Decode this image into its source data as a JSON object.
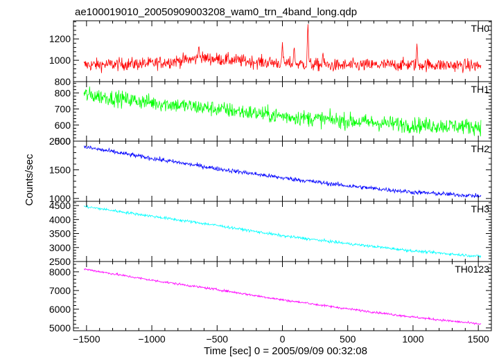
{
  "chart_data": [
    {
      "type": "line",
      "title": "ae100019010_20050909003208_wam0_trn_4band_long.qdp",
      "series": [
        {
          "name": "TH0",
          "color": "#ff0000",
          "trend": [
            [
              -1520,
              955
            ],
            [
              -1000,
              970
            ],
            [
              -600,
              1020
            ],
            [
              -200,
              985
            ],
            [
              400,
              950
            ],
            [
              1000,
              960
            ],
            [
              1520,
              948
            ]
          ],
          "noise": 55,
          "spikes": [
            [
              -640,
              1150
            ],
            [
              0,
              1170
            ],
            [
              90,
              1140
            ],
            [
              195,
              1380
            ],
            [
              310,
              1080
            ],
            [
              1030,
              1160
            ]
          ]
        }
      ],
      "ylim": [
        800,
        1370
      ],
      "yticks": [
        800,
        1000,
        1200
      ],
      "grid": false
    },
    {
      "type": "line",
      "series": [
        {
          "name": "TH1",
          "color": "#00ff00",
          "trend": [
            [
              -1520,
              790
            ],
            [
              -1000,
              740
            ],
            [
              -500,
              700
            ],
            [
              0,
              655
            ],
            [
              500,
              625
            ],
            [
              1000,
              600
            ],
            [
              1520,
              590
            ]
          ],
          "noise": 45
        }
      ],
      "ylim": [
        500,
        870
      ],
      "yticks": [
        500,
        600,
        700,
        800
      ],
      "grid": false
    },
    {
      "type": "line",
      "series": [
        {
          "name": "TH2",
          "color": "#0000ff",
          "trend": [
            [
              -1520,
              1900
            ],
            [
              -1000,
              1700
            ],
            [
              -500,
              1520
            ],
            [
              0,
              1360
            ],
            [
              500,
              1220
            ],
            [
              1000,
              1110
            ],
            [
              1520,
              1040
            ]
          ],
          "noise": 35
        }
      ],
      "ylim": [
        950,
        2000
      ],
      "yticks": [
        1000,
        1500,
        2000
      ],
      "grid": false
    },
    {
      "type": "line",
      "series": [
        {
          "name": "TH3",
          "color": "#00ffff",
          "trend": [
            [
              -1520,
              4470
            ],
            [
              -1000,
              4120
            ],
            [
              -500,
              3790
            ],
            [
              0,
              3420
            ],
            [
              500,
              3140
            ],
            [
              1000,
              2880
            ],
            [
              1520,
              2680
            ]
          ],
          "noise": 45
        }
      ],
      "ylim": [
        2500,
        4650
      ],
      "yticks": [
        2500,
        3000,
        3500,
        4000,
        4500
      ],
      "grid": false
    },
    {
      "type": "line",
      "series": [
        {
          "name": "TH0123",
          "color": "#ff00ff",
          "trend": [
            [
              -1520,
              8150
            ],
            [
              -1000,
              7550
            ],
            [
              -500,
              7050
            ],
            [
              0,
              6500
            ],
            [
              500,
              6020
            ],
            [
              1000,
              5580
            ],
            [
              1520,
              5200
            ]
          ],
          "noise": 55,
          "spikes": [
            [
              190,
              6380
            ]
          ]
        }
      ],
      "ylim": [
        4850,
        8550
      ],
      "yticks": [
        5000,
        6000,
        7000,
        8000
      ],
      "grid": false
    }
  ],
  "axes": {
    "xlabel": "Time [sec] 0 = 2005/09/09 00:32:08",
    "ylabel": "Counts/sec",
    "xlim": [
      -1600,
      1600
    ],
    "xticks": [
      -1500,
      -1000,
      -500,
      0,
      500,
      1000,
      1500
    ]
  }
}
